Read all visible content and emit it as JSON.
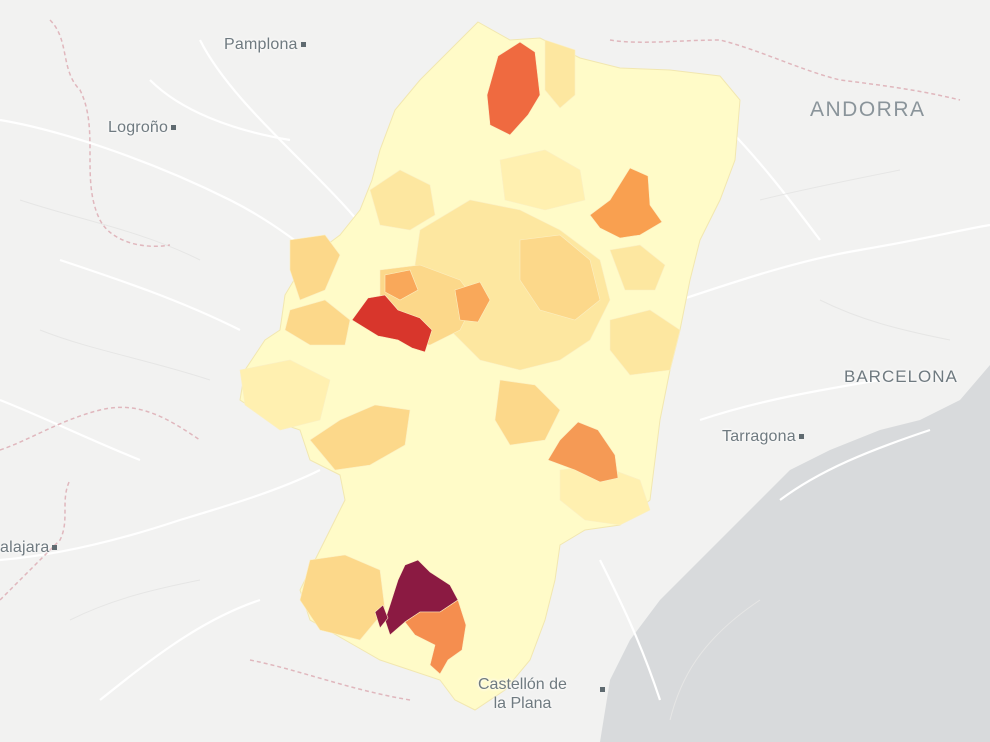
{
  "map": {
    "labels": {
      "pamplona": "Pamplona",
      "logrono": "Logroño",
      "andorra": "ANDORRA",
      "barcelona": "BARCELONA",
      "tarragona": "Tarragona",
      "guadalajara": "alajara",
      "castellon_line1": "Castellón de",
      "castellon_line2": "la Plana"
    },
    "colors": {
      "land": "#f2f2f1",
      "sea": "#d8dadc",
      "roads": "#ffffff",
      "borders": "#e0b7bd",
      "region_base": "#fffbc8",
      "scale": [
        "#fff6c0",
        "#fde7a0",
        "#fcd88a",
        "#f9a85a",
        "#ef7a45",
        "#d8362c",
        "#8b1a42"
      ]
    },
    "choropleth_levels": {
      "north_pyrenees_zone": 5,
      "northeast_zone": 4,
      "west_zone": 3,
      "zaragoza_zone": 6,
      "southeast_zone": 4,
      "south_dark_zone": 7,
      "south_orange_zone": 4
    }
  }
}
